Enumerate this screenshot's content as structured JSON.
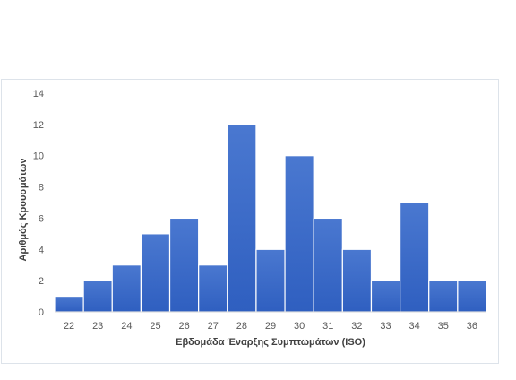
{
  "chart_data": {
    "type": "bar",
    "title": "",
    "xlabel": "Εβδομάδα Έναρξης Συμπτωμάτων (ISO)",
    "ylabel": "Αριθμός Κρουσμάτων",
    "categories": [
      "22",
      "23",
      "24",
      "25",
      "26",
      "27",
      "28",
      "29",
      "30",
      "31",
      "32",
      "33",
      "34",
      "35",
      "36"
    ],
    "values": [
      1,
      2,
      3,
      5,
      6,
      3,
      12,
      4,
      10,
      6,
      4,
      2,
      7,
      2,
      2
    ],
    "ylim": [
      0,
      14
    ],
    "yticks": [
      "0",
      "2",
      "4",
      "6",
      "8",
      "10",
      "12",
      "14"
    ],
    "grid": false,
    "legend": "none",
    "colors": {
      "bar_top": "#4a78d0",
      "bar_bottom": "#2f5fc0",
      "bar_edge": "#ffffff",
      "baseline": "#d9d9d9",
      "tick_text": "#595959"
    }
  }
}
